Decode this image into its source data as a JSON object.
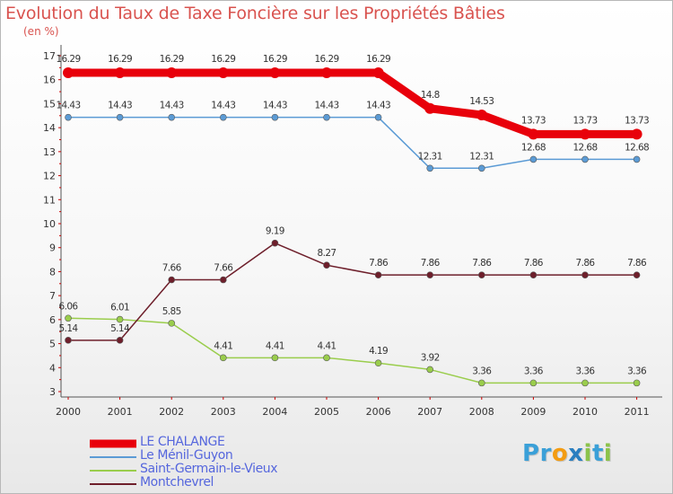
{
  "chart_data": {
    "type": "line",
    "title": "Evolution du Taux de Taxe Foncière sur les Propriétés Bâties",
    "unit": "(en %)",
    "categories": [
      "2000",
      "2001",
      "2002",
      "2003",
      "2004",
      "2005",
      "2006",
      "2007",
      "2008",
      "2009",
      "2010",
      "2011"
    ],
    "y_ticks": [
      "3",
      "4",
      "5",
      "6",
      "7",
      "8",
      "9",
      "10",
      "11",
      "12",
      "13",
      "14",
      "15",
      "16",
      "17"
    ],
    "ylim": [
      3,
      17
    ],
    "grid": false,
    "legend_position": "bottom-left",
    "series": [
      {
        "name": "LE CHALANGE",
        "color": "#e8000b",
        "values": [
          16.29,
          16.29,
          16.29,
          16.29,
          16.29,
          16.29,
          16.29,
          14.8,
          14.53,
          13.73,
          13.73,
          13.73
        ],
        "labels": [
          "16.29",
          "16.29",
          "16.29",
          "16.29",
          "16.29",
          "16.29",
          "16.29",
          "14.8",
          "14.53",
          "13.73",
          "13.73",
          "13.73"
        ]
      },
      {
        "name": "Le Ménil-Guyon",
        "color": "#5b9bd5",
        "values": [
          14.43,
          14.43,
          14.43,
          14.43,
          14.43,
          14.43,
          14.43,
          12.31,
          12.31,
          12.68,
          12.68,
          12.68
        ],
        "labels": [
          "14.43",
          "14.43",
          "14.43",
          "14.43",
          "14.43",
          "14.43",
          "14.43",
          "12.31",
          "12.31",
          "12.68",
          "12.68",
          "12.68"
        ]
      },
      {
        "name": "Saint-Germain-le-Vieux",
        "color": "#9acd4c",
        "values": [
          6.06,
          6.01,
          5.85,
          4.41,
          4.41,
          4.41,
          4.19,
          3.92,
          3.36,
          3.36,
          3.36,
          3.36
        ],
        "labels": [
          "6.06",
          "6.01",
          "5.85",
          "4.41",
          "4.41",
          "4.41",
          "4.19",
          "3.92",
          "3.36",
          "3.36",
          "3.36",
          "3.36"
        ]
      },
      {
        "name": "Montchevrel",
        "color": "#6e1f2b",
        "values": [
          5.14,
          5.14,
          7.66,
          7.66,
          9.19,
          8.27,
          7.86,
          7.86,
          7.86,
          7.86,
          7.86,
          7.86
        ],
        "labels": [
          "5.14",
          "5.14",
          "7.66",
          "7.66",
          "9.19",
          "8.27",
          "7.86",
          "7.86",
          "7.86",
          "7.86",
          "7.86",
          "7.86"
        ]
      }
    ]
  },
  "legend": [
    {
      "label": "LE CHALANGE",
      "color": "#e8000b",
      "text_color": "#5566dd"
    },
    {
      "label": "Le Ménil-Guyon",
      "color": "#5b9bd5",
      "text_color": "#5566dd"
    },
    {
      "label": "Saint-Germain-le-Vieux",
      "color": "#9acd4c",
      "text_color": "#5566dd"
    },
    {
      "label": "Montchevrel",
      "color": "#6e1f2b",
      "text_color": "#5566dd"
    }
  ],
  "logo": {
    "letters": [
      "P",
      "r",
      "o",
      "x",
      "i",
      "t",
      "i"
    ],
    "colors": [
      "#3aa0d8",
      "#3aa0d8",
      "#f39c12",
      "#2a7fc0",
      "#8bc34a",
      "#3aa0d8",
      "#8bc34a"
    ]
  }
}
